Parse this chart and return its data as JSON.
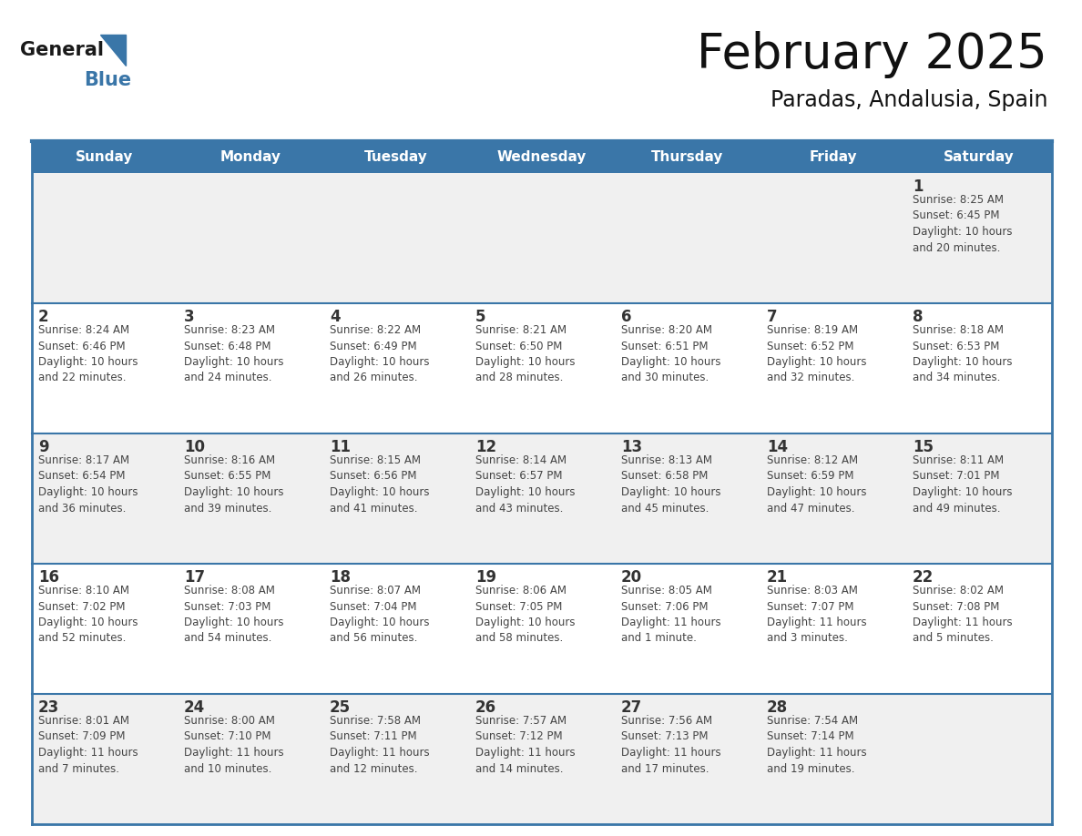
{
  "title": "February 2025",
  "subtitle": "Paradas, Andalusia, Spain",
  "header_color": "#3A76A8",
  "header_text_color": "#FFFFFF",
  "cell_bg_even": "#F0F0F0",
  "cell_bg_odd": "#FFFFFF",
  "day_number_color": "#333333",
  "text_color": "#444444",
  "border_color": "#3A76A8",
  "logo_general_color": "#1a1a1a",
  "logo_blue_color": "#3A76A8",
  "days_of_week": [
    "Sunday",
    "Monday",
    "Tuesday",
    "Wednesday",
    "Thursday",
    "Friday",
    "Saturday"
  ],
  "weeks": [
    [
      {
        "day": null,
        "sunrise": null,
        "sunset": null,
        "daylight": null
      },
      {
        "day": null,
        "sunrise": null,
        "sunset": null,
        "daylight": null
      },
      {
        "day": null,
        "sunrise": null,
        "sunset": null,
        "daylight": null
      },
      {
        "day": null,
        "sunrise": null,
        "sunset": null,
        "daylight": null
      },
      {
        "day": null,
        "sunrise": null,
        "sunset": null,
        "daylight": null
      },
      {
        "day": null,
        "sunrise": null,
        "sunset": null,
        "daylight": null
      },
      {
        "day": 1,
        "sunrise": "8:25 AM",
        "sunset": "6:45 PM",
        "daylight": "10 hours\nand 20 minutes."
      }
    ],
    [
      {
        "day": 2,
        "sunrise": "8:24 AM",
        "sunset": "6:46 PM",
        "daylight": "10 hours\nand 22 minutes."
      },
      {
        "day": 3,
        "sunrise": "8:23 AM",
        "sunset": "6:48 PM",
        "daylight": "10 hours\nand 24 minutes."
      },
      {
        "day": 4,
        "sunrise": "8:22 AM",
        "sunset": "6:49 PM",
        "daylight": "10 hours\nand 26 minutes."
      },
      {
        "day": 5,
        "sunrise": "8:21 AM",
        "sunset": "6:50 PM",
        "daylight": "10 hours\nand 28 minutes."
      },
      {
        "day": 6,
        "sunrise": "8:20 AM",
        "sunset": "6:51 PM",
        "daylight": "10 hours\nand 30 minutes."
      },
      {
        "day": 7,
        "sunrise": "8:19 AM",
        "sunset": "6:52 PM",
        "daylight": "10 hours\nand 32 minutes."
      },
      {
        "day": 8,
        "sunrise": "8:18 AM",
        "sunset": "6:53 PM",
        "daylight": "10 hours\nand 34 minutes."
      }
    ],
    [
      {
        "day": 9,
        "sunrise": "8:17 AM",
        "sunset": "6:54 PM",
        "daylight": "10 hours\nand 36 minutes."
      },
      {
        "day": 10,
        "sunrise": "8:16 AM",
        "sunset": "6:55 PM",
        "daylight": "10 hours\nand 39 minutes."
      },
      {
        "day": 11,
        "sunrise": "8:15 AM",
        "sunset": "6:56 PM",
        "daylight": "10 hours\nand 41 minutes."
      },
      {
        "day": 12,
        "sunrise": "8:14 AM",
        "sunset": "6:57 PM",
        "daylight": "10 hours\nand 43 minutes."
      },
      {
        "day": 13,
        "sunrise": "8:13 AM",
        "sunset": "6:58 PM",
        "daylight": "10 hours\nand 45 minutes."
      },
      {
        "day": 14,
        "sunrise": "8:12 AM",
        "sunset": "6:59 PM",
        "daylight": "10 hours\nand 47 minutes."
      },
      {
        "day": 15,
        "sunrise": "8:11 AM",
        "sunset": "7:01 PM",
        "daylight": "10 hours\nand 49 minutes."
      }
    ],
    [
      {
        "day": 16,
        "sunrise": "8:10 AM",
        "sunset": "7:02 PM",
        "daylight": "10 hours\nand 52 minutes."
      },
      {
        "day": 17,
        "sunrise": "8:08 AM",
        "sunset": "7:03 PM",
        "daylight": "10 hours\nand 54 minutes."
      },
      {
        "day": 18,
        "sunrise": "8:07 AM",
        "sunset": "7:04 PM",
        "daylight": "10 hours\nand 56 minutes."
      },
      {
        "day": 19,
        "sunrise": "8:06 AM",
        "sunset": "7:05 PM",
        "daylight": "10 hours\nand 58 minutes."
      },
      {
        "day": 20,
        "sunrise": "8:05 AM",
        "sunset": "7:06 PM",
        "daylight": "11 hours\nand 1 minute."
      },
      {
        "day": 21,
        "sunrise": "8:03 AM",
        "sunset": "7:07 PM",
        "daylight": "11 hours\nand 3 minutes."
      },
      {
        "day": 22,
        "sunrise": "8:02 AM",
        "sunset": "7:08 PM",
        "daylight": "11 hours\nand 5 minutes."
      }
    ],
    [
      {
        "day": 23,
        "sunrise": "8:01 AM",
        "sunset": "7:09 PM",
        "daylight": "11 hours\nand 7 minutes."
      },
      {
        "day": 24,
        "sunrise": "8:00 AM",
        "sunset": "7:10 PM",
        "daylight": "11 hours\nand 10 minutes."
      },
      {
        "day": 25,
        "sunrise": "7:58 AM",
        "sunset": "7:11 PM",
        "daylight": "11 hours\nand 12 minutes."
      },
      {
        "day": 26,
        "sunrise": "7:57 AM",
        "sunset": "7:12 PM",
        "daylight": "11 hours\nand 14 minutes."
      },
      {
        "day": 27,
        "sunrise": "7:56 AM",
        "sunset": "7:13 PM",
        "daylight": "11 hours\nand 17 minutes."
      },
      {
        "day": 28,
        "sunrise": "7:54 AM",
        "sunset": "7:14 PM",
        "daylight": "11 hours\nand 19 minutes."
      },
      {
        "day": null,
        "sunrise": null,
        "sunset": null,
        "daylight": null
      }
    ]
  ]
}
